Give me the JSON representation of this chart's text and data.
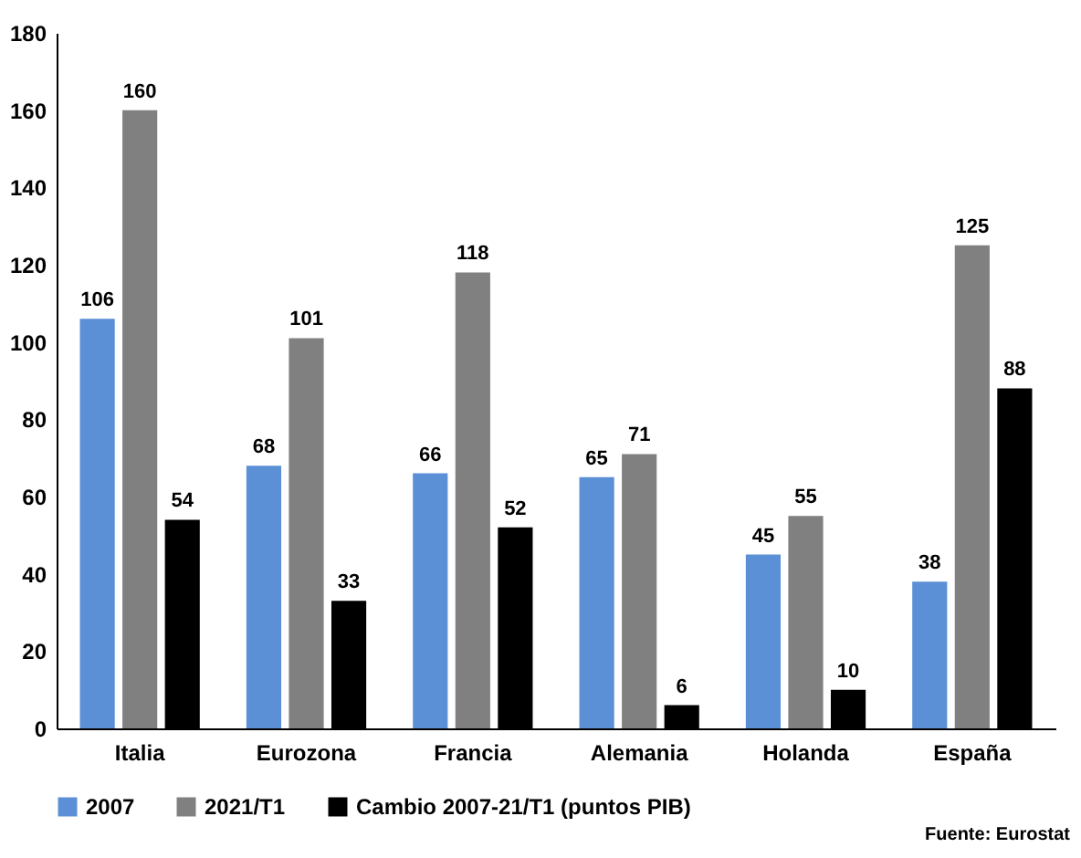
{
  "chart_data": {
    "type": "bar",
    "categories": [
      "Italia",
      "Eurozona",
      "Francia",
      "Alemania",
      "Holanda",
      "España"
    ],
    "series": [
      {
        "name": "2007",
        "color": "#5b8fd6",
        "values": [
          106,
          68,
          66,
          65,
          45,
          38
        ]
      },
      {
        "name": "2021/T1",
        "color": "#808080",
        "values": [
          160,
          101,
          118,
          71,
          55,
          125
        ]
      },
      {
        "name": "Cambio 2007-21/T1 (puntos PIB)",
        "color": "#000000",
        "values": [
          54,
          33,
          52,
          6,
          10,
          88
        ]
      }
    ],
    "ylim": [
      0,
      180
    ],
    "yticks": [
      0,
      20,
      40,
      60,
      80,
      100,
      120,
      140,
      160,
      180
    ],
    "grid": false,
    "legend": "bottom",
    "data_labels": true,
    "annotations": [
      "Fuente: Eurostat"
    ]
  }
}
